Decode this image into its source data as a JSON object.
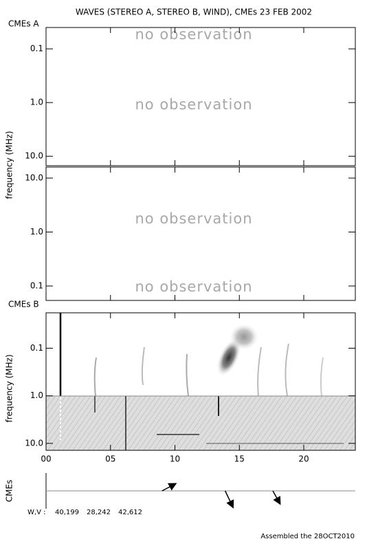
{
  "chart_data": {
    "type": "spectrogram",
    "title": "WAVES (STEREO A, STEREO B, WIND), CMEs  23 FEB 2002",
    "ylabel": "frequency (MHz)",
    "xlim": [
      0,
      24
    ],
    "xticks": [
      {
        "value": 0,
        "label": "00"
      },
      {
        "value": 5,
        "label": "05"
      },
      {
        "value": 10,
        "label": "10"
      },
      {
        "value": 15,
        "label": "15"
      },
      {
        "value": 20,
        "label": "20"
      }
    ],
    "log_y": true,
    "panels": [
      {
        "label": "CMEs A",
        "label_color": "#cc0000",
        "ylim": [
          0.04,
          15
        ],
        "yticks": [
          0.1,
          {
            "value": 1,
            "label": "1.0"
          },
          {
            "value": 10,
            "label": "10.0"
          }
        ],
        "annotations": [
          "no observation",
          "no observation"
        ]
      },
      {
        "label": "CMEs B",
        "label_color": "#0000aa",
        "ylim": [
          16,
          0.054
        ],
        "yticks": [
          {
            "value": 10,
            "label": "10.0"
          },
          {
            "value": 1,
            "label": "1.0"
          },
          0.1
        ],
        "annotations": [
          "no observation",
          "no observation"
        ]
      },
      {
        "ylabel": "frequency (MHz)",
        "ylim": [
          0.018,
          14
        ],
        "yticks": [
          0.1,
          {
            "value": 1,
            "label": "1.0"
          },
          {
            "value": 10,
            "label": "10.0"
          }
        ]
      }
    ],
    "cme_ylabel": "CMEs",
    "cme_times": [
      9.0,
      13.9,
      17.6
    ],
    "wv_label": "W,V :",
    "wv": [
      "40,199",
      "28,242",
      "42,612"
    ],
    "footer": "Assembled the 28OCT2010"
  }
}
